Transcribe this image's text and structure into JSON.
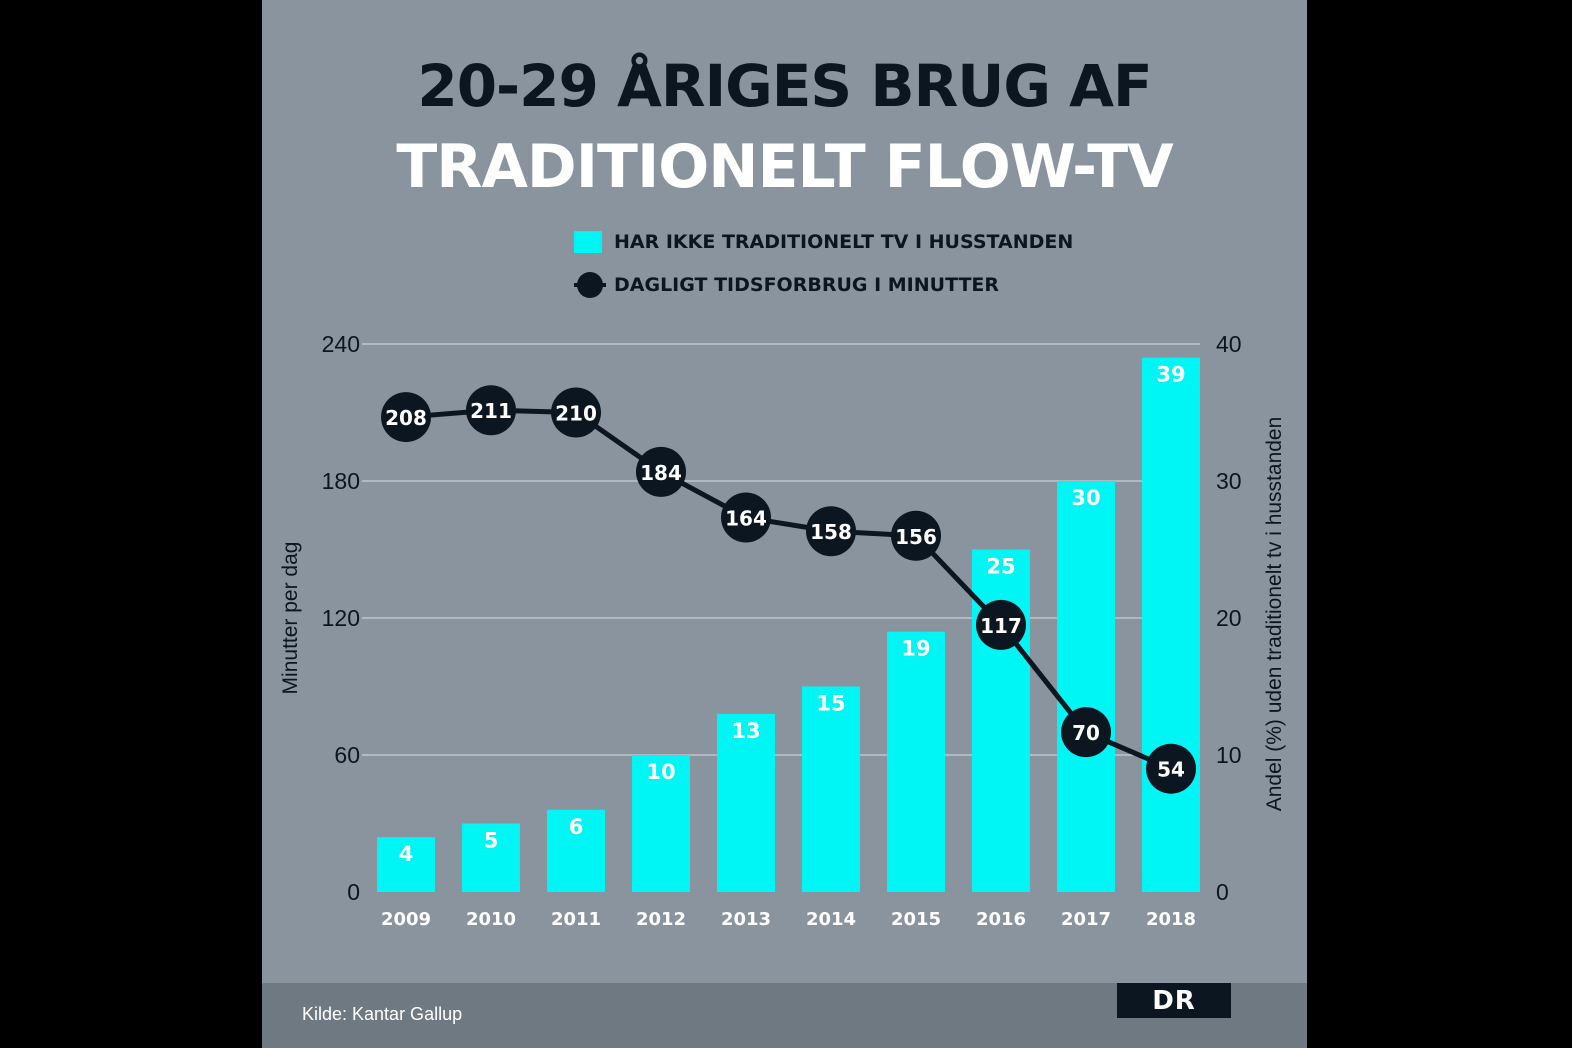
{
  "title_line1": "20-29 ÅRIGES BRUG AF",
  "title_line2": "TRADITIONELT FLOW-TV",
  "legend": {
    "bars": "HAR IKKE TRADITIONELT TV I HUSSTANDEN",
    "line": "DAGLIGT TIDSFORBRUG I MINUTTER"
  },
  "colors": {
    "bars": "#00f5f5",
    "line": "#0b1620",
    "panel": "#8a949e"
  },
  "source": "Kilde: Kantar Gallup",
  "logo": "DR",
  "chart_data": {
    "type": "bar+line",
    "categories": [
      "2009",
      "2010",
      "2011",
      "2012",
      "2013",
      "2014",
      "2015",
      "2016",
      "2017",
      "2018"
    ],
    "series": [
      {
        "name": "HAR IKKE TRADITIONELT TV I HUSSTANDEN",
        "type": "bar",
        "axis": "right",
        "values": [
          4,
          5,
          6,
          10,
          13,
          15,
          19,
          25,
          30,
          39
        ]
      },
      {
        "name": "DAGLIGT TIDSFORBRUG I MINUTTER",
        "type": "line",
        "axis": "left",
        "values": [
          208,
          211,
          210,
          184,
          164,
          158,
          156,
          117,
          70,
          54
        ]
      }
    ],
    "ylabel_left": "Minutter per dag",
    "ylabel_right": "Andel (%) uden traditionelt tv i husstanden",
    "ylim_left": [
      0,
      240
    ],
    "yticks_left": [
      "0",
      "60",
      "120",
      "180",
      "240"
    ],
    "ylim_right": [
      0,
      40
    ],
    "yticks_right": [
      "0",
      "10",
      "20",
      "30",
      "40"
    ],
    "grid": true
  }
}
